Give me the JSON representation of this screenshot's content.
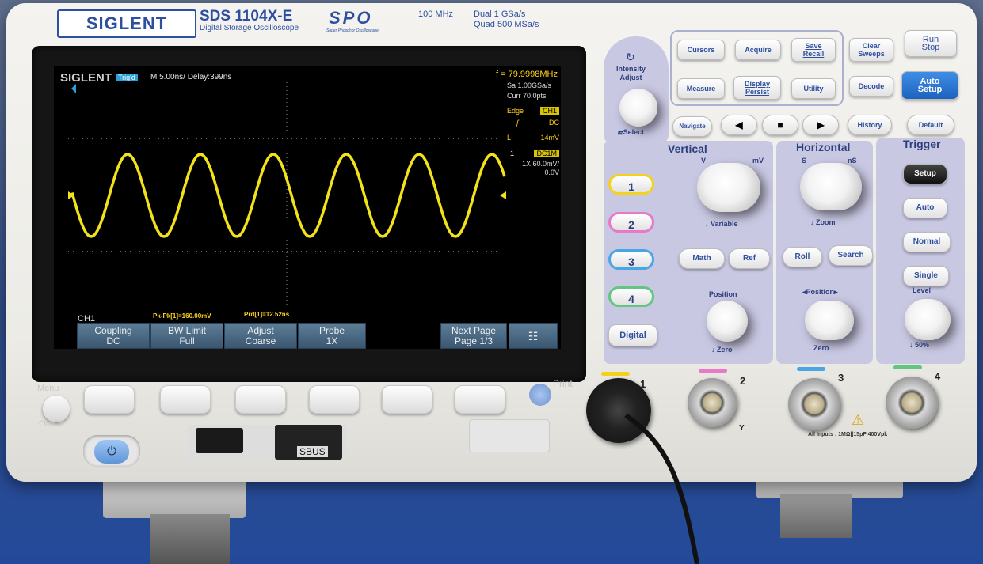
{
  "header": {
    "logo": "SIGLENT",
    "model": "SDS 1104X-E",
    "subtitle": "Digital Storage Oscilloscope",
    "spo": "SPO",
    "spo_sub": "Super Phosphor Oscilloscope",
    "bandwidth": "100 MHz",
    "rate_dual": "Dual  1 GSa/s",
    "rate_quad": "Quad  500 MSa/s"
  },
  "screen": {
    "brand": "SIGLENT",
    "trig_state": "Trig'd",
    "timebase": "M 5.00ns/  Delay:399ns",
    "frequency": "f = 79.9998MHz",
    "sample_rate": "Sa 1.00GSa/s",
    "curr": "Curr 70.0pts",
    "trigger_type": "Edge",
    "trigger_src": "CH1",
    "trigger_slope": "ʃ",
    "coupling": "DC",
    "level_label": "L",
    "level": "-14mV",
    "ch_num": "1",
    "ch_coupling": "DC1M",
    "probe_scale": "1X",
    "volts_div": "60.0mV/",
    "offset": "0.0V",
    "ch_label": "CH1",
    "meas_pkpk": "Pk-Pk[1]=160.00mV",
    "meas_prd": "Prd[1]=12.52ns",
    "menu": [
      {
        "line1": "Coupling",
        "line2": "DC"
      },
      {
        "line1": "BW Limit",
        "line2": "Full"
      },
      {
        "line1": "Adjust",
        "line2": "Coarse"
      },
      {
        "line1": "Probe",
        "line2": "1X"
      },
      {
        "line1": "Next Page",
        "line2": "Page 1/3"
      }
    ],
    "waveform": {
      "cycles": 6,
      "color": "#f2e21a"
    }
  },
  "front": {
    "menu_label": "Menu",
    "onoff_label": "On/Off",
    "print_label": "Print",
    "sbus_label": "SBUS",
    "power_icon": "⏻"
  },
  "panel": {
    "intensity_label": "Intensity\nAdjust",
    "select_label": "Select",
    "buttons_top": {
      "cursors": "Cursors",
      "acquire": "Acquire",
      "save_recall": "Save\nRecall",
      "clear_sweeps": "Clear\nSweeps",
      "run_stop": "Run\nStop",
      "measure": "Measure",
      "display_persist": "Display\nPersist",
      "utility": "Utility",
      "decode": "Decode",
      "auto_setup": "Auto\nSetup",
      "navigate": "Navigate",
      "history": "History",
      "default": "Default"
    },
    "vertical": {
      "title": "Vertical",
      "v_label": "V",
      "mv_label": "mV",
      "variable": "Variable",
      "math": "Math",
      "ref": "Ref",
      "position": "Position",
      "zero": "Zero",
      "digital": "Digital",
      "channels": [
        "1",
        "2",
        "3",
        "4"
      ]
    },
    "horizontal": {
      "title": "Horizontal",
      "s_label": "S",
      "ns_label": "nS",
      "zoom": "Zoom",
      "roll": "Roll",
      "search": "Search",
      "position": "◂Position▸",
      "zero": "Zero"
    },
    "trigger": {
      "title": "Trigger",
      "setup": "Setup",
      "auto": "Auto",
      "normal": "Normal",
      "single": "Single",
      "level": "Level",
      "pct": "50%"
    },
    "inputs": {
      "labels": [
        "1",
        "2",
        "3",
        "4"
      ],
      "y_label": "Y",
      "note": "All Inputs : 1MΩ||15pF 400Vpk"
    },
    "channel_colors": {
      "1": "#f4d21c",
      "2": "#e878c8",
      "3": "#49a6e6",
      "4": "#62c682"
    }
  }
}
